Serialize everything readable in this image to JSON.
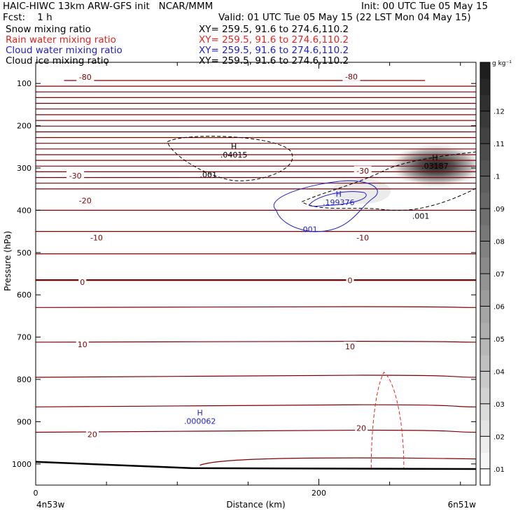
{
  "header": {
    "model_line": "HAIC-HIWC 13km ARW-GFS init   NCAR/MMM",
    "init_line": "Init: 00 UTC Tue 05 May 15",
    "fcst_line": "Fcst:    1 h",
    "valid_line": "Valid: 01 UTC Tue 05 May 15 (22 LST Mon 04 May 15)"
  },
  "fields": [
    {
      "name": "Snow mixing ratio",
      "xy": "XY= 259.5, 91.6 to 274.6,110.2",
      "color": "#000000"
    },
    {
      "name": "Rain water mixing ratio",
      "xy": "XY= 259.5, 91.6 to 274.6,110.2",
      "color": "#e8231f"
    },
    {
      "name": "Cloud water mixing ratio",
      "xy": "XY= 259.5, 91.6 to 274.6,110.2",
      "color": "#1f1fcf"
    },
    {
      "name": "Cloud ice mixing ratio",
      "xy": "XY= 259.5, 91.6 to 274.6,110.2",
      "color": "#000000"
    }
  ],
  "chart_data": {
    "type": "contour",
    "xlabel": "Distance (km)",
    "ylabel": "Pressure (hPa)",
    "xlim": [
      0,
      311
    ],
    "ylim": [
      1050,
      50
    ],
    "x_ticks": [
      0,
      200
    ],
    "x_minor_ticks": [
      50,
      100,
      150,
      250,
      300
    ],
    "y_ticks": [
      100,
      200,
      300,
      400,
      500,
      600,
      700,
      800,
      900,
      1000
    ],
    "x_endpoints": {
      "left": "4n53w",
      "right": "6n51w"
    },
    "colorbar": {
      "unit": "g kg⁻¹",
      "min": 0.005,
      "max": 0.135,
      "labels": [
        ".01",
        ".02",
        ".03",
        ".04",
        ".05",
        ".06",
        ".07",
        ".08",
        ".09",
        ".1",
        ".11",
        ".12"
      ],
      "values": [
        0.01,
        0.02,
        0.03,
        0.04,
        0.05,
        0.06,
        0.07,
        0.08,
        0.09,
        0.1,
        0.11,
        0.12
      ]
    },
    "temperature_isotherms": {
      "color": "#800000",
      "labels": [
        {
          "text": "-80",
          "x": 35,
          "p": 85
        },
        {
          "text": "-80",
          "x": 223,
          "p": 84
        },
        {
          "text": "-30",
          "x": 28,
          "p": 318
        },
        {
          "text": "-30",
          "x": 231,
          "p": 307
        },
        {
          "text": "-20",
          "x": 35,
          "p": 377
        },
        {
          "text": "-10",
          "x": 43,
          "p": 465
        },
        {
          "text": "-10",
          "x": 231,
          "p": 465
        },
        {
          "text": "0",
          "x": 33,
          "p": 570
        },
        {
          "text": "0",
          "x": 222,
          "p": 566
        },
        {
          "text": "10",
          "x": 33,
          "p": 717
        },
        {
          "text": "10",
          "x": 222,
          "p": 722
        },
        {
          "text": "20",
          "x": 40,
          "p": 930
        },
        {
          "text": "20",
          "x": 230,
          "p": 915
        }
      ]
    },
    "extrema": [
      {
        "field": "Snow mixing ratio",
        "label": "H",
        "value": ".04015",
        "x": 140,
        "p": 265
      },
      {
        "field": "Cloud ice mixing ratio",
        "label": "H",
        "value": ".03187",
        "x": 282,
        "p": 292
      },
      {
        "field": "Cloud water mixing ratio",
        "label": "H",
        "value": ".199376",
        "x": 214,
        "p": 378
      },
      {
        "field": "Cloud water mixing ratio",
        "label": "H",
        "value": ".000062",
        "x": 116,
        "p": 895
      }
    ],
    "contour_labels": [
      {
        "field": "Snow mixing ratio",
        "value": ".001",
        "x": 122,
        "p": 316
      },
      {
        "field": "Snow mixing ratio",
        "value": ".001",
        "x": 272,
        "p": 413
      },
      {
        "field": "Cloud water mixing ratio",
        "value": ".001",
        "x": 193,
        "p": 445
      }
    ]
  }
}
